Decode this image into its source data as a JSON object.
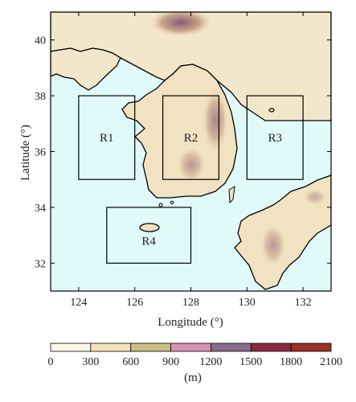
{
  "map": {
    "x_ticks": [
      "124",
      "126",
      "128",
      "130",
      "132"
    ],
    "y_ticks": [
      "32",
      "34",
      "36",
      "38",
      "40"
    ],
    "xlabel": "Longitude (°)",
    "ylabel": "Latitude (°)",
    "extent": {
      "lon": [
        123,
        133
      ],
      "lat": [
        31,
        41
      ]
    },
    "sea_color": "#e0fafa",
    "regions": [
      {
        "name": "R1",
        "lon": [
          124,
          126
        ],
        "lat": [
          35,
          38
        ]
      },
      {
        "name": "R2",
        "lon": [
          127,
          129
        ],
        "lat": [
          35,
          38
        ]
      },
      {
        "name": "R3",
        "lon": [
          130,
          132
        ],
        "lat": [
          35,
          38
        ]
      },
      {
        "name": "R4",
        "lon": [
          125,
          128
        ],
        "lat": [
          32,
          34
        ]
      }
    ]
  },
  "colorbar": {
    "tick_labels": [
      "0",
      "300",
      "600",
      "900",
      "1200",
      "1500",
      "1800",
      "2100"
    ],
    "unit": "(m)",
    "colors": [
      "#fdf8e6",
      "#f7e2bc",
      "#c8bf84",
      "#d892b4",
      "#8a6c8c",
      "#8c2b3c",
      "#9a3227"
    ]
  }
}
